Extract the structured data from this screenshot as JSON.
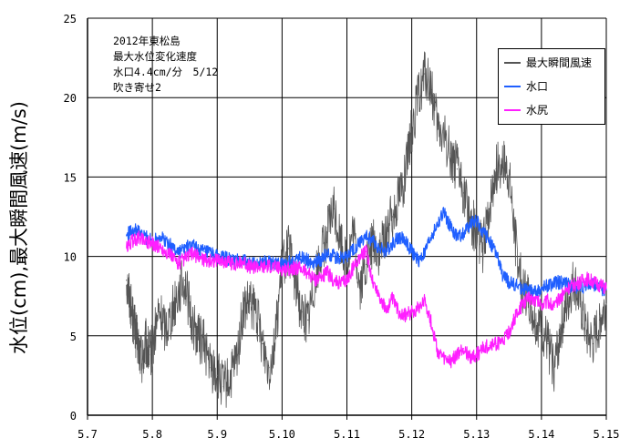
{
  "chart_data": {
    "type": "line",
    "ylabel": "水位(cm),最大瞬間風速(m/s)",
    "annotation": [
      "2012年東松島",
      "最大水位変化速度",
      "水口4.4cm/分　5/12",
      "吹き寄せ2"
    ],
    "x_ticks": [
      "5.7",
      "5.8",
      "5.9",
      "5.10",
      "5.11",
      "5.12",
      "5.13",
      "5.14",
      "5.15"
    ],
    "y_ticks": [
      "0",
      "5",
      "10",
      "15",
      "20",
      "25"
    ],
    "ylim": [
      0,
      25
    ],
    "xlim": [
      0,
      8
    ],
    "grid": true,
    "legend_position": "top-right",
    "series": [
      {
        "name": "最大瞬間風速",
        "color": "#555555",
        "x": [
          0.6,
          0.65,
          0.7,
          0.75,
          0.8,
          0.85,
          0.9,
          0.95,
          1.0,
          1.1,
          1.2,
          1.3,
          1.4,
          1.5,
          1.6,
          1.7,
          1.8,
          1.9,
          2.0,
          2.1,
          2.2,
          2.3,
          2.4,
          2.5,
          2.6,
          2.7,
          2.8,
          2.9,
          3.0,
          3.1,
          3.2,
          3.3,
          3.4,
          3.5,
          3.6,
          3.7,
          3.8,
          3.9,
          4.0,
          4.1,
          4.2,
          4.3,
          4.4,
          4.5,
          4.6,
          4.7,
          4.8,
          4.9,
          5.0,
          5.1,
          5.2,
          5.3,
          5.4,
          5.5,
          5.6,
          5.7,
          5.8,
          5.9,
          6.0,
          6.1,
          6.2,
          6.3,
          6.4,
          6.5,
          6.6,
          6.7,
          6.8,
          6.9,
          7.0,
          7.1,
          7.2,
          7.3,
          7.4,
          7.5,
          7.6,
          7.7,
          7.8,
          7.9,
          8.0
        ],
        "y": [
          8.5,
          7.5,
          6.0,
          5.0,
          4.0,
          3.5,
          4.5,
          3.8,
          4.2,
          6.5,
          5.5,
          6.5,
          7.8,
          8.5,
          6.0,
          5.0,
          4.5,
          3.0,
          2.5,
          1.8,
          2.2,
          3.5,
          6.5,
          7.0,
          6.5,
          4.5,
          3.0,
          5.0,
          9.5,
          10.5,
          8.5,
          6.5,
          6.0,
          8.5,
          10.0,
          11.5,
          13.0,
          11.0,
          9.5,
          11.5,
          8.0,
          9.5,
          11.0,
          10.0,
          11.5,
          12.5,
          14.0,
          15.0,
          18.0,
          20.0,
          21.5,
          20.5,
          18.0,
          17.5,
          16.5,
          15.5,
          14.0,
          12.5,
          11.5,
          10.5,
          13.0,
          15.5,
          16.0,
          15.0,
          11.0,
          8.0,
          7.5,
          6.0,
          5.5,
          4.5,
          3.0,
          5.5,
          7.0,
          8.5,
          7.0,
          5.0,
          4.5,
          6.0,
          7.0
        ]
      },
      {
        "name": "水口",
        "color": "#1f5fff",
        "x": [
          0.6,
          0.7,
          0.8,
          0.9,
          1.0,
          1.1,
          1.2,
          1.3,
          1.4,
          1.5,
          1.6,
          1.7,
          1.8,
          1.9,
          2.0,
          2.1,
          2.2,
          2.3,
          2.4,
          2.5,
          2.6,
          2.7,
          2.8,
          2.9,
          3.0,
          3.1,
          3.2,
          3.3,
          3.4,
          3.5,
          3.6,
          3.7,
          3.8,
          3.9,
          4.0,
          4.1,
          4.2,
          4.3,
          4.4,
          4.5,
          4.6,
          4.7,
          4.8,
          4.9,
          5.0,
          5.1,
          5.2,
          5.3,
          5.4,
          5.5,
          5.6,
          5.7,
          5.8,
          5.9,
          6.0,
          6.1,
          6.2,
          6.3,
          6.4,
          6.5,
          6.6,
          6.7,
          6.8,
          6.9,
          7.0,
          7.1,
          7.2,
          7.3,
          7.4,
          7.5,
          7.6,
          7.7,
          7.8,
          7.9,
          8.0
        ],
        "y": [
          11.3,
          11.7,
          11.5,
          11.2,
          11.0,
          11.3,
          11.0,
          10.6,
          10.3,
          10.5,
          10.7,
          10.5,
          10.3,
          10.2,
          10.0,
          9.9,
          9.8,
          9.7,
          9.8,
          9.5,
          9.6,
          9.7,
          9.6,
          9.5,
          9.5,
          9.6,
          9.8,
          10.0,
          9.7,
          9.6,
          9.8,
          10.2,
          10.0,
          9.9,
          10.0,
          10.4,
          10.9,
          11.2,
          11.0,
          10.5,
          10.3,
          10.8,
          11.2,
          11.0,
          10.3,
          9.7,
          10.2,
          11.3,
          12.0,
          12.8,
          11.8,
          11.2,
          11.5,
          12.0,
          12.3,
          11.5,
          11.0,
          10.2,
          8.8,
          8.4,
          8.2,
          8.0,
          7.8,
          7.8,
          7.9,
          8.2,
          8.3,
          8.4,
          8.2,
          8.1,
          8.0,
          8.2,
          8.3,
          8.0,
          7.9
        ]
      },
      {
        "name": "水尻",
        "color": "#ff1fff",
        "x": [
          0.6,
          0.7,
          0.8,
          0.9,
          1.0,
          1.1,
          1.2,
          1.3,
          1.4,
          1.5,
          1.6,
          1.7,
          1.8,
          1.9,
          2.0,
          2.1,
          2.2,
          2.3,
          2.4,
          2.5,
          2.6,
          2.7,
          2.8,
          2.9,
          3.0,
          3.1,
          3.2,
          3.3,
          3.4,
          3.5,
          3.6,
          3.7,
          3.8,
          3.9,
          4.0,
          4.1,
          4.2,
          4.3,
          4.4,
          4.5,
          4.6,
          4.7,
          4.8,
          4.9,
          5.0,
          5.1,
          5.2,
          5.3,
          5.4,
          5.5,
          5.6,
          5.7,
          5.8,
          5.9,
          6.0,
          6.1,
          6.2,
          6.3,
          6.4,
          6.5,
          6.6,
          6.7,
          6.8,
          6.9,
          7.0,
          7.1,
          7.2,
          7.3,
          7.4,
          7.5,
          7.6,
          7.7,
          7.8,
          7.9,
          8.0
        ],
        "y": [
          10.5,
          11.0,
          11.2,
          11.0,
          10.8,
          10.6,
          10.3,
          10.0,
          9.6,
          9.8,
          10.2,
          10.0,
          9.8,
          9.7,
          9.8,
          9.7,
          9.6,
          9.5,
          9.7,
          9.3,
          9.4,
          9.3,
          9.4,
          9.3,
          9.2,
          9.2,
          9.3,
          9.2,
          9.0,
          8.5,
          8.7,
          9.0,
          8.4,
          8.3,
          8.5,
          9.3,
          10.0,
          10.3,
          8.4,
          7.5,
          6.6,
          7.3,
          6.5,
          6.3,
          6.5,
          6.8,
          7.3,
          5.8,
          4.0,
          3.5,
          3.4,
          3.8,
          4.2,
          3.6,
          3.8,
          4.2,
          4.4,
          4.5,
          4.6,
          5.2,
          6.2,
          6.9,
          7.4,
          7.3,
          7.0,
          7.2,
          6.8,
          7.5,
          8.0,
          8.2,
          8.4,
          8.6,
          8.4,
          8.2,
          8.0
        ]
      }
    ]
  }
}
